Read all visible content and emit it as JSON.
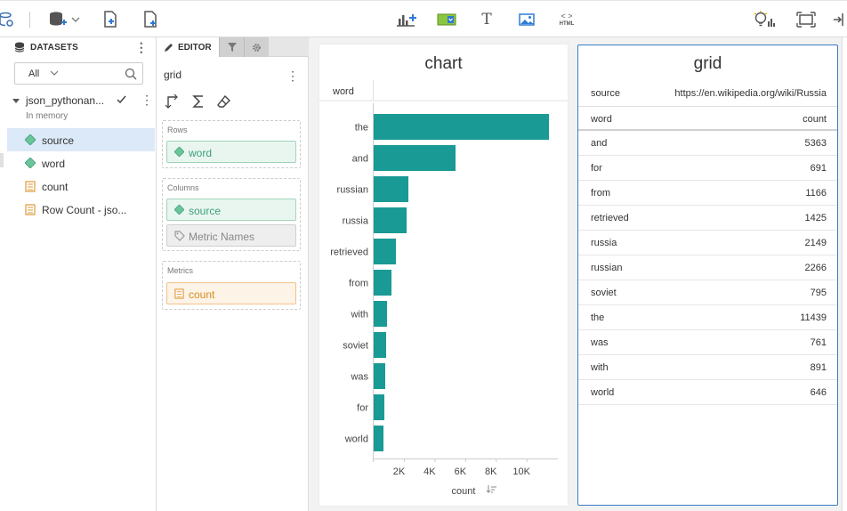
{
  "toolbar": {
    "icons": [
      "datasource-icon",
      "add-database-icon",
      "new-page-icon",
      "add-document-icon",
      "add-chart-icon",
      "filter-widget-icon",
      "text-icon",
      "image-icon",
      "html-icon",
      "insight-icon",
      "fit-screen-icon",
      "export-icon"
    ],
    "html_label": "HTML"
  },
  "datasets": {
    "header": "DATASETS",
    "filter_value": "All",
    "dataset_name": "json_pythonan...",
    "dataset_sub": "In memory",
    "fields": [
      {
        "label": "source",
        "type": "dimension"
      },
      {
        "label": "word",
        "type": "dimension"
      },
      {
        "label": "count",
        "type": "metric"
      },
      {
        "label": "Row Count - jso...",
        "type": "metric"
      }
    ]
  },
  "editor": {
    "tab_label": "EDITOR",
    "viz_name": "grid",
    "rows_caption": "Rows",
    "rows_pill": "word",
    "columns_caption": "Columns",
    "columns_pills": [
      "source",
      "Metric Names"
    ],
    "metrics_caption": "Metrics",
    "metrics_pill": "count"
  },
  "chart_card": {
    "title": "chart",
    "row_header": "word",
    "colors": {
      "bar": "#1a9a94",
      "axis": "#cccccc"
    }
  },
  "chart_data": {
    "type": "bar",
    "orientation": "horizontal",
    "categories": [
      "the",
      "and",
      "russian",
      "russia",
      "retrieved",
      "from",
      "with",
      "soviet",
      "was",
      "for",
      "world"
    ],
    "values": [
      11439,
      5363,
      2266,
      2149,
      1425,
      1166,
      891,
      795,
      761,
      691,
      646
    ],
    "xlabel": "count",
    "ylabel": "word",
    "xticks": [
      "2K",
      "4K",
      "6K",
      "8K",
      "10K"
    ],
    "xtick_values": [
      2000,
      4000,
      6000,
      8000,
      10000
    ],
    "xlim": [
      0,
      12000
    ]
  },
  "grid_card": {
    "title": "grid",
    "source_key": "source",
    "source_value": "https://en.wikipedia.org/wiki/Russia",
    "col_word": "word",
    "col_count": "count",
    "rows": [
      {
        "word": "and",
        "count": "5363"
      },
      {
        "word": "for",
        "count": "691"
      },
      {
        "word": "from",
        "count": "1166"
      },
      {
        "word": "retrieved",
        "count": "1425"
      },
      {
        "word": "russia",
        "count": "2149"
      },
      {
        "word": "russian",
        "count": "2266"
      },
      {
        "word": "soviet",
        "count": "795"
      },
      {
        "word": "the",
        "count": "11439"
      },
      {
        "word": "was",
        "count": "761"
      },
      {
        "word": "with",
        "count": "891"
      },
      {
        "word": "world",
        "count": "646"
      }
    ]
  }
}
